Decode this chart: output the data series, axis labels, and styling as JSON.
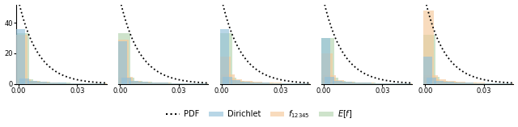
{
  "n_subplots": 5,
  "xlim": [
    -0.001,
    0.045
  ],
  "ylim": [
    0,
    52
  ],
  "xticks": [
    0.0,
    0.03
  ],
  "yticks": [
    0,
    20,
    40
  ],
  "bar_alpha": 0.65,
  "colors": {
    "dirichlet": "#92C0DA",
    "f12345": "#F5C99A",
    "ef": "#B5D5B0"
  },
  "pdf_lw": 1.3,
  "subplot_bar_data": [
    {
      "bins": [
        0.001,
        0.003,
        0.007,
        0.012,
        0.017,
        0.022,
        0.027,
        0.032,
        0.037,
        0.042
      ],
      "dirichlet": [
        36,
        3.5,
        2.0,
        1.5,
        1.0,
        0.8,
        0.6,
        0.5,
        0.4,
        0.3
      ],
      "f12345": [
        32,
        3.0,
        1.8,
        1.2,
        0.8,
        0.6,
        0.5,
        0.4,
        0.3,
        0.2
      ],
      "ef": [
        33,
        3.2,
        1.9,
        1.3,
        0.9,
        0.7,
        0.5,
        0.4,
        0.3,
        0.2
      ]
    },
    {
      "bins": [
        0.001,
        0.003,
        0.007,
        0.012,
        0.017,
        0.022,
        0.027,
        0.032,
        0.037,
        0.042
      ],
      "dirichlet": [
        28,
        4.0,
        2.0,
        1.5,
        1.0,
        0.8,
        0.6,
        0.5,
        0.4,
        0.3
      ],
      "f12345": [
        29,
        4.5,
        2.2,
        1.5,
        1.0,
        0.8,
        0.6,
        0.5,
        0.4,
        0.3
      ],
      "ef": [
        33,
        4.0,
        2.0,
        1.5,
        1.0,
        0.8,
        0.6,
        0.5,
        0.4,
        0.3
      ]
    },
    {
      "bins": [
        0.001,
        0.003,
        0.007,
        0.012,
        0.017,
        0.022,
        0.027,
        0.032,
        0.037,
        0.042
      ],
      "dirichlet": [
        36,
        4.5,
        2.5,
        1.5,
        1.0,
        0.8,
        0.6,
        0.5,
        0.4,
        0.3
      ],
      "f12345": [
        18,
        6.0,
        3.0,
        2.0,
        1.2,
        0.9,
        0.7,
        0.5,
        0.4,
        0.3
      ],
      "ef": [
        33,
        4.0,
        2.2,
        1.4,
        1.0,
        0.8,
        0.6,
        0.5,
        0.4,
        0.3
      ]
    },
    {
      "bins": [
        0.001,
        0.003,
        0.007,
        0.012,
        0.017,
        0.022,
        0.027,
        0.032,
        0.037,
        0.042
      ],
      "dirichlet": [
        30,
        4.5,
        2.2,
        1.5,
        1.0,
        0.8,
        0.6,
        0.5,
        0.4,
        0.3
      ],
      "f12345": [
        20,
        5.5,
        2.5,
        1.5,
        1.0,
        0.8,
        0.6,
        0.5,
        0.4,
        0.3
      ],
      "ef": [
        30,
        4.0,
        2.0,
        1.4,
        0.9,
        0.7,
        0.5,
        0.4,
        0.3,
        0.2
      ]
    },
    {
      "bins": [
        0.001,
        0.003,
        0.007,
        0.012,
        0.017,
        0.022,
        0.027,
        0.032,
        0.037,
        0.042
      ],
      "dirichlet": [
        18,
        4.0,
        2.0,
        1.5,
        1.0,
        0.8,
        0.6,
        0.5,
        0.4,
        0.3
      ],
      "f12345": [
        48,
        5.5,
        2.8,
        1.8,
        1.2,
        0.9,
        0.7,
        0.5,
        0.4,
        0.3
      ],
      "ef": [
        32,
        4.5,
        2.2,
        1.4,
        1.0,
        0.8,
        0.6,
        0.5,
        0.4,
        0.3
      ]
    }
  ],
  "figsize": [
    6.4,
    1.57
  ],
  "dpi": 100,
  "background": "#FFFFFF"
}
